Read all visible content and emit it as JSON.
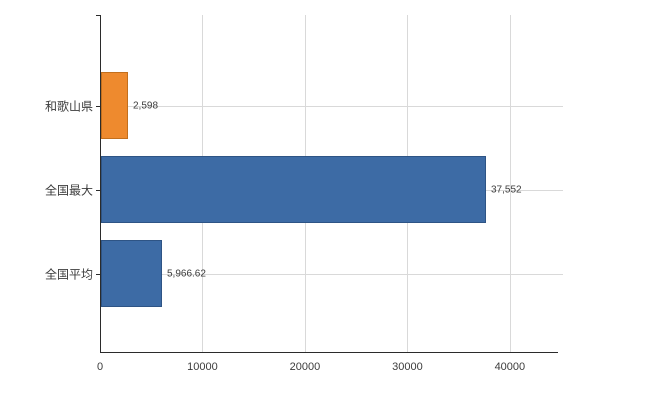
{
  "chart_data": {
    "type": "bar",
    "orientation": "horizontal",
    "title": "",
    "xlabel": "",
    "ylabel": "",
    "categories": [
      "和歌山県",
      "全国最大",
      "全国平均"
    ],
    "values": [
      2598,
      37552,
      5966.62
    ],
    "value_labels": [
      "2,598",
      "37,552",
      "5,966.62"
    ],
    "bar_colors": [
      "#ee8a2e",
      "#3d6ba5",
      "#3d6ba5"
    ],
    "bar_border_colors": [
      "#c26f1d",
      "#2e5485",
      "#2e5485"
    ],
    "xlim": [
      0,
      44600
    ],
    "xticks": [
      0,
      10000,
      20000,
      30000,
      40000
    ],
    "xtick_labels": [
      "0",
      "10000",
      "20000",
      "30000",
      "40000"
    ],
    "grid": true,
    "legend": false,
    "colors": {
      "axis": "#2b2b2b",
      "grid": "#d9d9d9",
      "text": "#3c3c3c",
      "background": "#ffffff"
    }
  }
}
